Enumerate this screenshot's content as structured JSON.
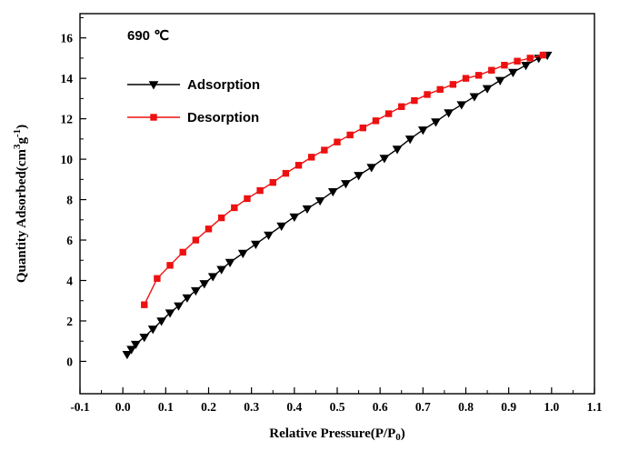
{
  "figure": {
    "background": "#ffffff",
    "annotation": "690 ℃"
  },
  "chart_data": {
    "type": "line",
    "title": "",
    "annotation": "690 ℃",
    "xlabel": "Relative Pressure(P/P0)",
    "xlabel_parts": [
      {
        "t": "Relative Pressure(P/P"
      },
      {
        "t": "0",
        "sub": true
      },
      {
        "t": ")"
      }
    ],
    "ylabel": "Quantity Adsorbed(cm3g-1)",
    "ylabel_parts": [
      {
        "t": "Quantity Adsorbed(cm"
      },
      {
        "t": "3",
        "sup": true
      },
      {
        "t": "g"
      },
      {
        "t": "-1",
        "sup": true
      },
      {
        "t": ")"
      }
    ],
    "xlim": [
      -0.1,
      1.1
    ],
    "ylim": [
      -1.6,
      17.2
    ],
    "grid": false,
    "legend_position": "upper-left-inside",
    "x_tick_labels": [
      "-0.1",
      "0.0",
      "0.1",
      "0.2",
      "0.3",
      "0.4",
      "0.5",
      "0.6",
      "0.7",
      "0.8",
      "0.9",
      "1.0",
      "1.1"
    ],
    "y_tick_labels": [
      "0",
      "2",
      "4",
      "6",
      "8",
      "10",
      "12",
      "14",
      "16"
    ],
    "colors": {
      "adsorption": "#000000",
      "desorption": "#ed1111"
    },
    "legend": [
      {
        "label": "Adsorption",
        "color": "#000000",
        "marker": "triangle-down"
      },
      {
        "label": "Desorption",
        "color": "#ed1111",
        "marker": "square"
      }
    ],
    "series": [
      {
        "name": "Adsorption",
        "color": "#000000",
        "marker": "triangle-down",
        "x": [
          0.01,
          0.02,
          0.03,
          0.05,
          0.07,
          0.09,
          0.11,
          0.13,
          0.15,
          0.17,
          0.19,
          0.21,
          0.23,
          0.25,
          0.28,
          0.31,
          0.34,
          0.37,
          0.4,
          0.43,
          0.46,
          0.49,
          0.52,
          0.55,
          0.58,
          0.61,
          0.64,
          0.67,
          0.7,
          0.73,
          0.76,
          0.79,
          0.82,
          0.85,
          0.88,
          0.91,
          0.94,
          0.97,
          0.99
        ],
        "y": [
          0.35,
          0.6,
          0.85,
          1.2,
          1.6,
          2.0,
          2.4,
          2.75,
          3.15,
          3.5,
          3.85,
          4.2,
          4.55,
          4.9,
          5.35,
          5.8,
          6.25,
          6.7,
          7.15,
          7.55,
          7.95,
          8.4,
          8.8,
          9.2,
          9.6,
          10.05,
          10.5,
          11.0,
          11.45,
          11.85,
          12.3,
          12.7,
          13.1,
          13.5,
          13.9,
          14.3,
          14.65,
          15.0,
          15.15
        ]
      },
      {
        "name": "Desorption",
        "color": "#ed1111",
        "marker": "square",
        "x": [
          0.05,
          0.08,
          0.11,
          0.14,
          0.17,
          0.2,
          0.23,
          0.26,
          0.29,
          0.32,
          0.35,
          0.38,
          0.41,
          0.44,
          0.47,
          0.5,
          0.53,
          0.56,
          0.59,
          0.62,
          0.65,
          0.68,
          0.71,
          0.74,
          0.77,
          0.8,
          0.83,
          0.86,
          0.89,
          0.92,
          0.95,
          0.98
        ],
        "y": [
          2.8,
          4.1,
          4.75,
          5.4,
          6.0,
          6.55,
          7.1,
          7.6,
          8.05,
          8.45,
          8.85,
          9.3,
          9.7,
          10.1,
          10.45,
          10.85,
          11.2,
          11.55,
          11.9,
          12.25,
          12.6,
          12.9,
          13.2,
          13.45,
          13.7,
          14.0,
          14.15,
          14.4,
          14.65,
          14.85,
          15.0,
          15.15
        ]
      }
    ]
  }
}
